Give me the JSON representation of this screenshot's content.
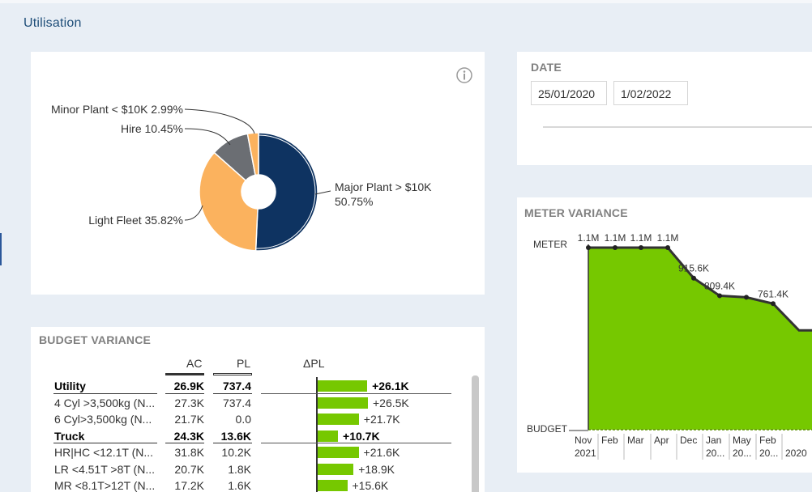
{
  "page": {
    "title": "Utilisation"
  },
  "pie": {
    "labels": [
      {
        "text": "Minor Plant < $10K 2.99%"
      },
      {
        "text": "Hire 10.45%"
      },
      {
        "text": "Light Fleet 35.82%"
      },
      {
        "line1": "Major Plant > $10K",
        "line2": "50.75%"
      }
    ]
  },
  "chart_data": [
    {
      "type": "pie",
      "title": "",
      "slices": [
        {
          "label": "Major Plant > $10K",
          "value": 50.75,
          "color": "#0e3361"
        },
        {
          "label": "Light Fleet",
          "value": 35.82,
          "color": "#fbb25e"
        },
        {
          "label": "Hire",
          "value": 10.45,
          "color": "#6b6e73"
        },
        {
          "label": "Minor Plant < $10K",
          "value": 2.99,
          "color": "#fbb25e"
        }
      ],
      "donut": true
    },
    {
      "type": "area",
      "title": "METER VARIANCE",
      "y_labels": [
        "METER",
        "BUDGET"
      ],
      "categories": [
        "Nov 2021",
        "Feb",
        "Mar",
        "Apr",
        "Dec",
        "Jan 20...",
        "May 20...",
        "Feb 20...",
        "2020"
      ],
      "values": [
        1100000,
        1100000,
        1100000,
        1100000,
        915600,
        809400,
        800000,
        761400,
        600000
      ],
      "data_labels": [
        "1.1M",
        "1.1M",
        "1.1M",
        "1.1M",
        "915.6K",
        "809.4K",
        "",
        "761.4K",
        ""
      ],
      "ylim": [
        0,
        1100000
      ],
      "fill_color": "#76c800",
      "line_color": "#333333"
    }
  ],
  "date": {
    "label": "DATE",
    "start": "25/01/2020",
    "end": "1/02/2022"
  },
  "meter": {
    "title": "METER VARIANCE",
    "meter_label": "METER",
    "budget_label": "BUDGET",
    "x_labels": [
      {
        "line1": "Nov",
        "line2": "2021"
      },
      {
        "line1": "Feb",
        "line2": ""
      },
      {
        "line1": "Mar",
        "line2": ""
      },
      {
        "line1": "Apr",
        "line2": ""
      },
      {
        "line1": "Dec",
        "line2": ""
      },
      {
        "line1": "Jan",
        "line2": "20..."
      },
      {
        "line1": "May",
        "line2": "20..."
      },
      {
        "line1": "Feb",
        "line2": "20..."
      },
      {
        "line1": "",
        "line2": "2020"
      }
    ]
  },
  "budget": {
    "title": "BUDGET VARIANCE",
    "headers": {
      "ac": "AC",
      "pl": "PL",
      "dpl": "ΔPL"
    },
    "rows": [
      {
        "name": "Utility",
        "ac": "26.9K",
        "pl": "737.4",
        "delta": "+26.1K",
        "value": 26.1,
        "bold": true
      },
      {
        "name": "4 Cyl >3,500kg (N...",
        "ac": "27.3K",
        "pl": "737.4",
        "delta": "+26.5K",
        "value": 26.5,
        "bold": false
      },
      {
        "name": "6 Cyl>3,500kg (N...",
        "ac": "21.7K",
        "pl": "0.0",
        "delta": "+21.7K",
        "value": 21.7,
        "bold": false
      },
      {
        "name": "Truck",
        "ac": "24.3K",
        "pl": "13.6K",
        "delta": "+10.7K",
        "value": 10.7,
        "bold": true
      },
      {
        "name": "HR|HC <12.1T (N...",
        "ac": "31.8K",
        "pl": "10.2K",
        "delta": "+21.6K",
        "value": 21.6,
        "bold": false
      },
      {
        "name": "LR <4.51T >8T (N...",
        "ac": "20.7K",
        "pl": "1.8K",
        "delta": "+18.9K",
        "value": 18.9,
        "bold": false
      },
      {
        "name": "MR <8.1T>12T (N...",
        "ac": "17.2K",
        "pl": "1.6K",
        "delta": "+15.6K",
        "value": 15.6,
        "bold": false
      }
    ],
    "bar_color": "#76c800"
  }
}
